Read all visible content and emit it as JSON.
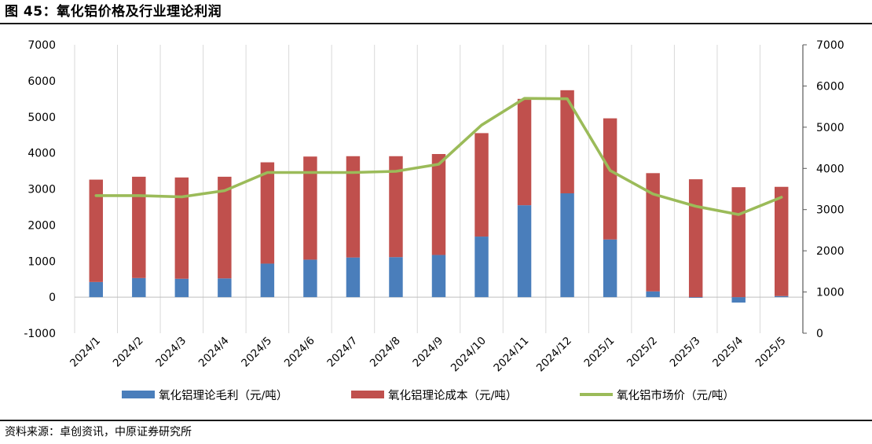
{
  "header": {
    "title": "图 45：氧化铝价格及行业理论利润"
  },
  "footer": {
    "source": "资料来源：卓创资讯，中原证券研究所"
  },
  "chart_data": {
    "type": "bar",
    "stacked": true,
    "categories": [
      "2024/1",
      "2024/2",
      "2024/3",
      "2024/4",
      "2024/5",
      "2024/6",
      "2024/7",
      "2024/8",
      "2024/9",
      "2024/10",
      "2024/11",
      "2024/12",
      "2025/1",
      "2025/2",
      "2025/3",
      "2025/4",
      "2025/5"
    ],
    "series": [
      {
        "name": "氧化铝理论毛利（元/吨）",
        "type": "bar",
        "axis": "left",
        "color": "#4a7ebb",
        "values": [
          420,
          530,
          510,
          520,
          930,
          1040,
          1100,
          1110,
          1170,
          1680,
          2550,
          2880,
          1600,
          160,
          -20,
          -150,
          30
        ]
      },
      {
        "name": "氧化铝理论成本（元/吨）",
        "type": "bar",
        "axis": "left",
        "color": "#c0504d",
        "values": [
          2840,
          2810,
          2810,
          2820,
          2810,
          2860,
          2810,
          2800,
          2800,
          2870,
          2950,
          2860,
          3360,
          3280,
          3270,
          3050,
          3030
        ]
      },
      {
        "name": "氧化铝市场价（元/吨）",
        "type": "line",
        "axis": "right",
        "color": "#9bbb59",
        "values": [
          3340,
          3340,
          3310,
          3460,
          3900,
          3900,
          3900,
          3930,
          4100,
          5050,
          5700,
          5690,
          3950,
          3380,
          3080,
          2880,
          3300
        ]
      }
    ],
    "y_left": {
      "min": -1000,
      "max": 7000,
      "ticks": [
        "-1000",
        "0",
        "1000",
        "2000",
        "3000",
        "4000",
        "5000",
        "6000",
        "7000"
      ]
    },
    "y_right": {
      "min": 0,
      "max": 7000,
      "ticks": [
        "0",
        "1000",
        "2000",
        "3000",
        "4000",
        "5000",
        "6000",
        "7000"
      ]
    },
    "grid": "vertical",
    "legend_position": "bottom"
  }
}
